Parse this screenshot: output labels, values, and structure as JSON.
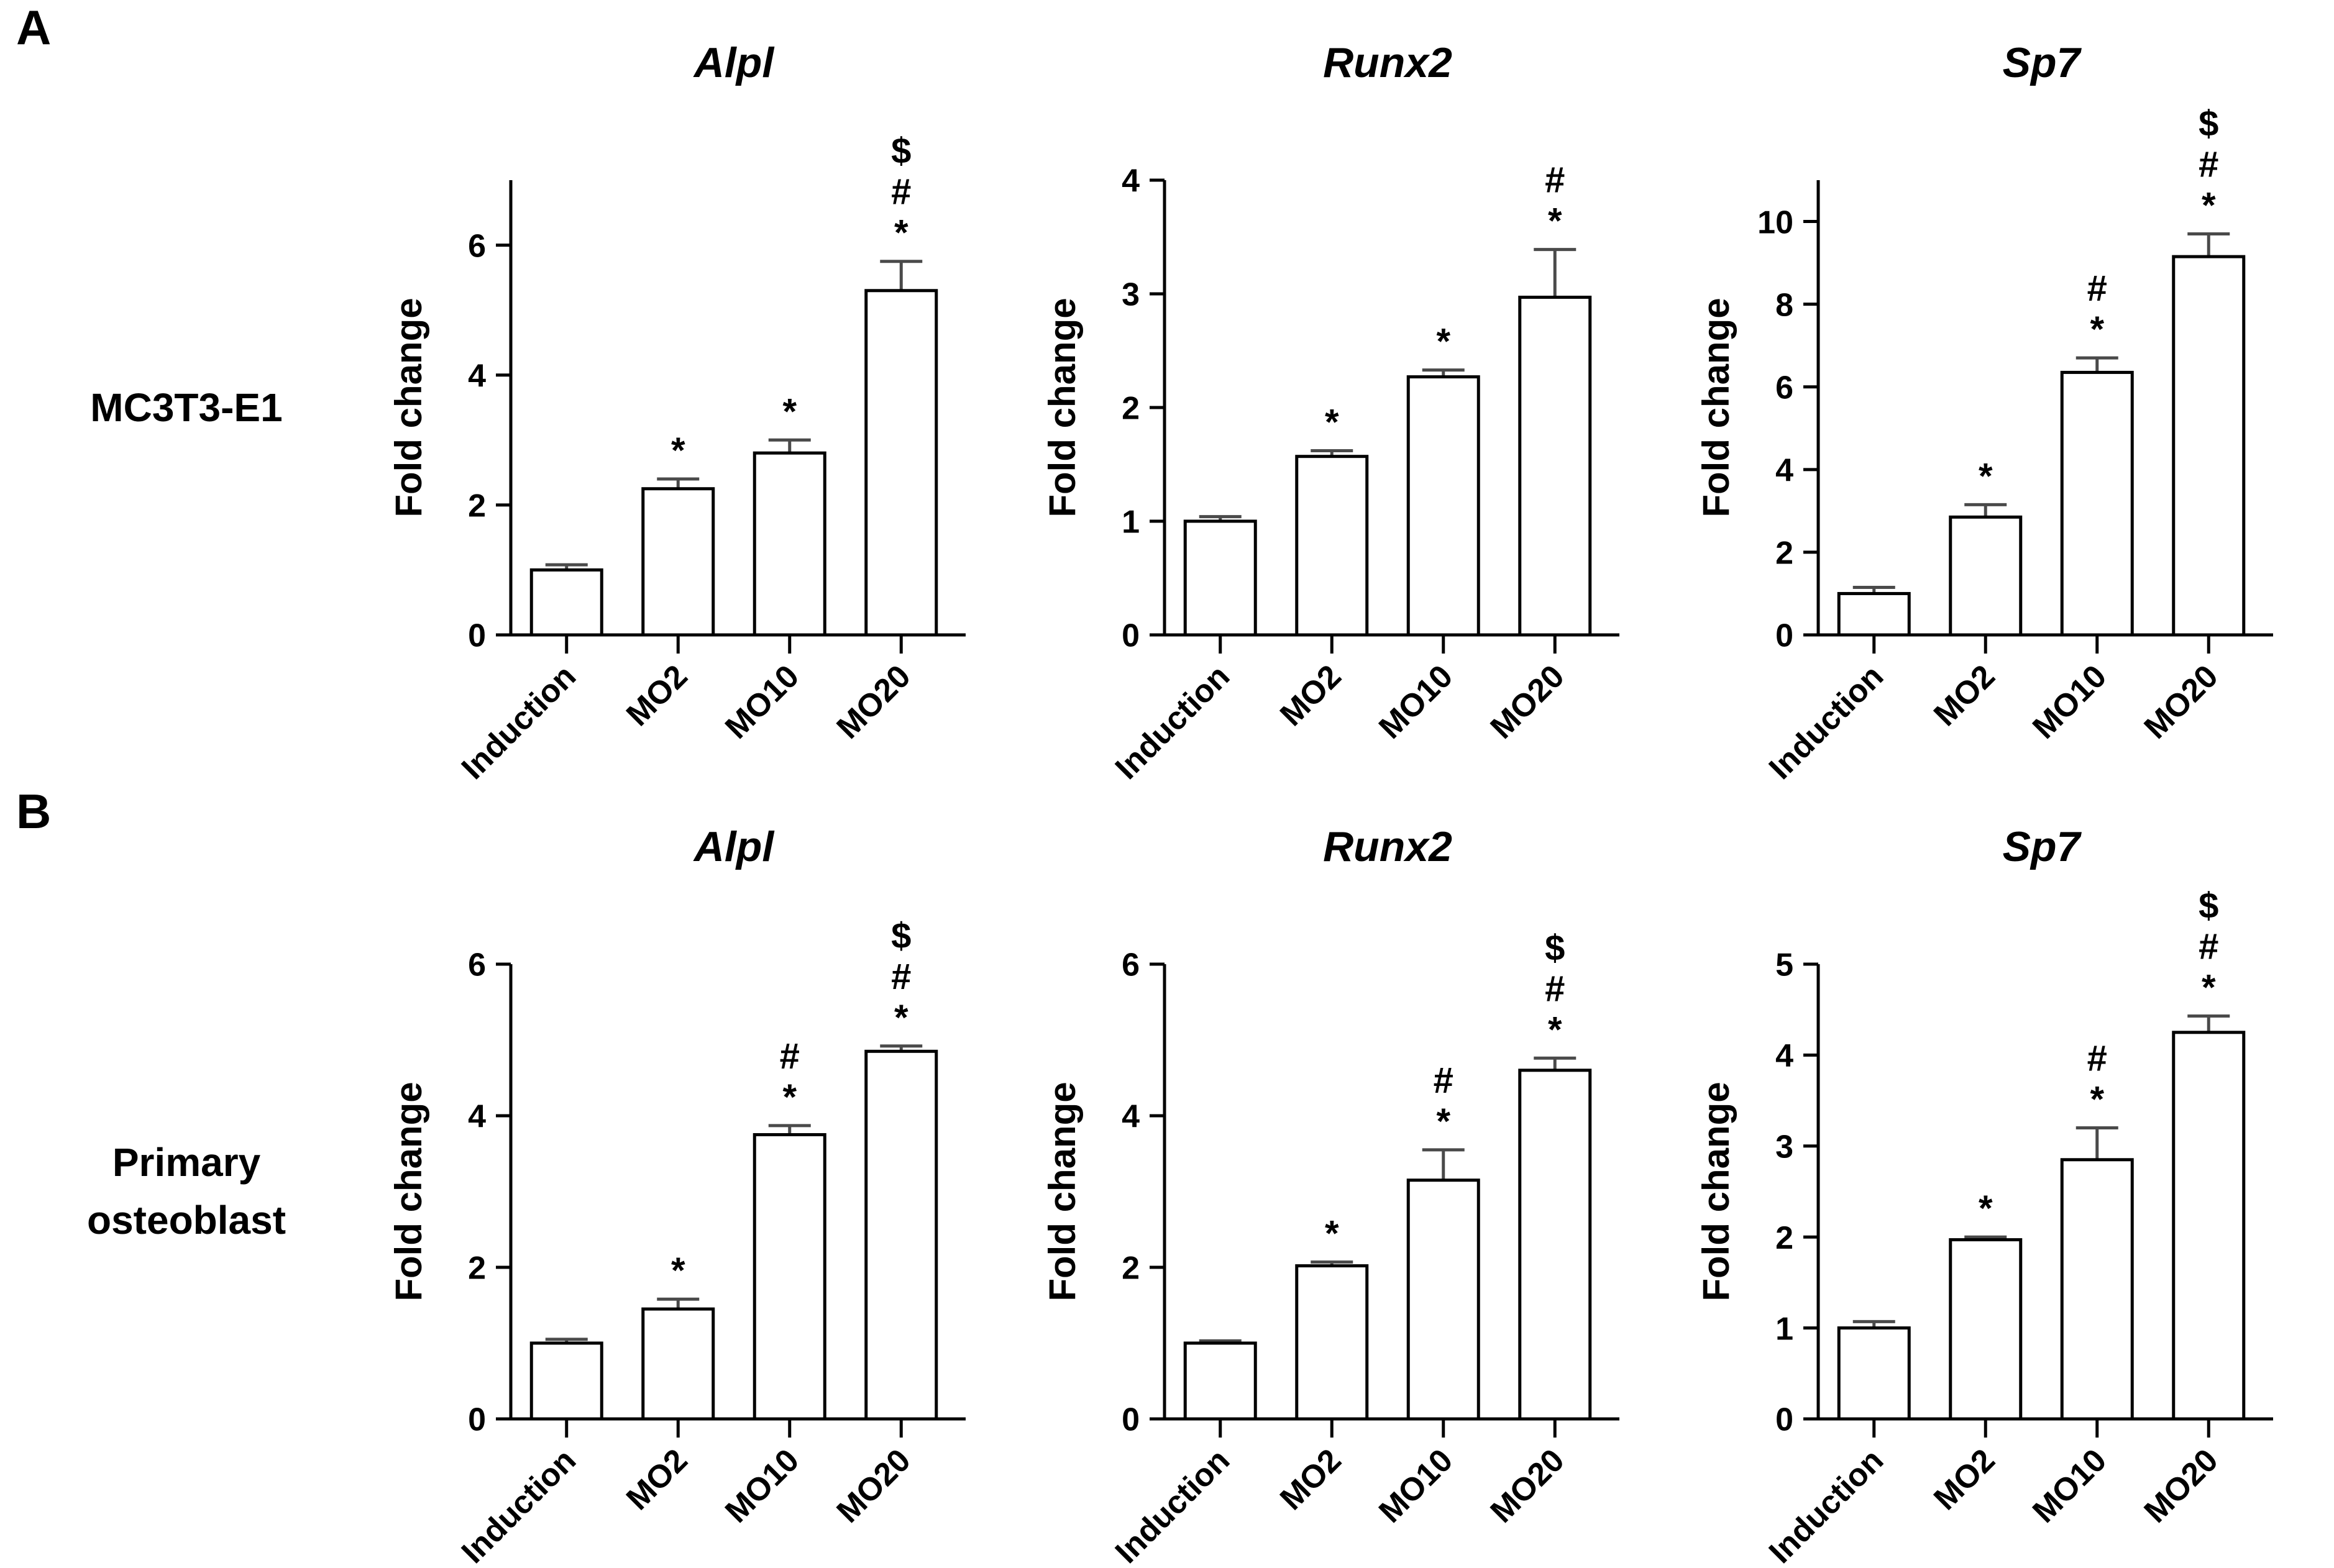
{
  "figure": {
    "background": "#ffffff",
    "panels": [
      {
        "letter": "A",
        "row_label_lines": [
          "MC3T3-E1"
        ]
      },
      {
        "letter": "B",
        "row_label_lines": [
          "Primary",
          "osteoblast"
        ]
      }
    ]
  },
  "style": {
    "bar_fill": "#ffffff",
    "bar_stroke": "#000000",
    "axis_color": "#000000",
    "error_bar_color": "#4a4a4a",
    "text_color": "#000000"
  },
  "chart_data": [
    {
      "type": "bar",
      "panel": "A",
      "cell_line": "MC3T3-E1",
      "title": "Alpl",
      "categories": [
        "Induction",
        "MO2",
        "MO10",
        "MO20"
      ],
      "values": [
        1.0,
        2.25,
        2.8,
        5.3
      ],
      "errors": [
        0.08,
        0.15,
        0.2,
        0.45
      ],
      "significance": [
        [],
        [
          "*"
        ],
        [
          "*"
        ],
        [
          "*",
          "#",
          "$"
        ]
      ],
      "xlabel": "",
      "ylabel": "Fold change",
      "yticks": [
        0,
        2,
        4,
        6
      ],
      "ylim": [
        0,
        7
      ],
      "grid": false,
      "legend": false
    },
    {
      "type": "bar",
      "panel": "A",
      "cell_line": "MC3T3-E1",
      "title": "Runx2",
      "categories": [
        "Induction",
        "MO2",
        "MO10",
        "MO20"
      ],
      "values": [
        1.0,
        1.57,
        2.27,
        2.97
      ],
      "errors": [
        0.04,
        0.05,
        0.06,
        0.42
      ],
      "significance": [
        [],
        [
          "*"
        ],
        [
          "*"
        ],
        [
          "*",
          "#"
        ]
      ],
      "xlabel": "",
      "ylabel": "Fold change",
      "yticks": [
        0,
        1,
        2,
        3,
        4
      ],
      "ylim": [
        0,
        4
      ],
      "grid": false,
      "legend": false
    },
    {
      "type": "bar",
      "panel": "A",
      "cell_line": "MC3T3-E1",
      "title": "Sp7",
      "categories": [
        "Induction",
        "MO2",
        "MO10",
        "MO20"
      ],
      "values": [
        1.0,
        2.85,
        6.35,
        9.15
      ],
      "errors": [
        0.15,
        0.3,
        0.35,
        0.55
      ],
      "significance": [
        [],
        [
          "*"
        ],
        [
          "*",
          "#"
        ],
        [
          "*",
          "#",
          "$"
        ]
      ],
      "xlabel": "",
      "ylabel": "Fold change",
      "yticks": [
        0,
        2,
        4,
        6,
        8,
        10
      ],
      "ylim": [
        0,
        11
      ],
      "grid": false,
      "legend": false
    },
    {
      "type": "bar",
      "panel": "B",
      "cell_line": "Primary osteoblast",
      "title": "Alpl",
      "categories": [
        "Induction",
        "MO2",
        "MO10",
        "MO20"
      ],
      "values": [
        1.0,
        1.45,
        3.75,
        4.85
      ],
      "errors": [
        0.05,
        0.13,
        0.12,
        0.07
      ],
      "significance": [
        [],
        [
          "*"
        ],
        [
          "*",
          "#"
        ],
        [
          "*",
          "#",
          "$"
        ]
      ],
      "xlabel": "",
      "ylabel": "Fold change",
      "yticks": [
        0,
        2,
        4,
        6
      ],
      "ylim": [
        0,
        6
      ],
      "grid": false,
      "legend": false
    },
    {
      "type": "bar",
      "panel": "B",
      "cell_line": "Primary osteoblast",
      "title": "Runx2",
      "categories": [
        "Induction",
        "MO2",
        "MO10",
        "MO20"
      ],
      "values": [
        1.0,
        2.02,
        3.15,
        4.6
      ],
      "errors": [
        0.03,
        0.05,
        0.4,
        0.16
      ],
      "significance": [
        [],
        [
          "*"
        ],
        [
          "*",
          "#"
        ],
        [
          "*",
          "#",
          "$"
        ]
      ],
      "xlabel": "",
      "ylabel": "Fold change",
      "yticks": [
        0,
        2,
        4,
        6
      ],
      "ylim": [
        0,
        6
      ],
      "grid": false,
      "legend": false
    },
    {
      "type": "bar",
      "panel": "B",
      "cell_line": "Primary osteoblast",
      "title": "Sp7",
      "categories": [
        "Induction",
        "MO2",
        "MO10",
        "MO20"
      ],
      "values": [
        1.0,
        1.97,
        2.85,
        4.25
      ],
      "errors": [
        0.07,
        0.03,
        0.35,
        0.18
      ],
      "significance": [
        [],
        [
          "*"
        ],
        [
          "*",
          "#"
        ],
        [
          "*",
          "#",
          "$"
        ]
      ],
      "xlabel": "",
      "ylabel": "Fold change",
      "yticks": [
        0,
        1,
        2,
        3,
        4,
        5
      ],
      "ylim": [
        0,
        5
      ],
      "grid": false,
      "legend": false
    }
  ]
}
